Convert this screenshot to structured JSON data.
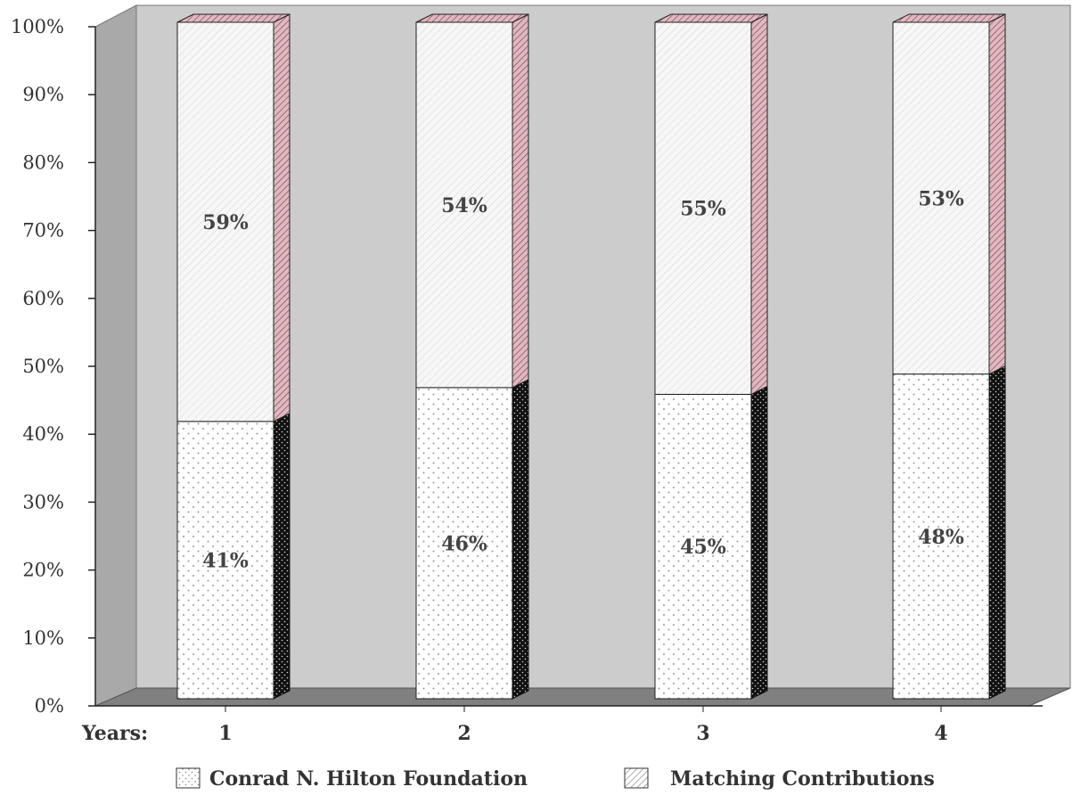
{
  "chart_data": {
    "type": "bar",
    "stacked": true,
    "xlabel": "Years:",
    "categories": [
      "1",
      "2",
      "3",
      "4"
    ],
    "series": [
      {
        "name": "Conrad N. Hilton Foundation",
        "values": [
          41,
          46,
          45,
          48
        ],
        "labels": [
          "41%",
          "46%",
          "45%",
          "48%"
        ]
      },
      {
        "name": "Matching Contributions",
        "values": [
          59,
          54,
          55,
          53
        ],
        "labels": [
          "59%",
          "54%",
          "55%",
          "53%"
        ]
      }
    ],
    "y_ticks": [
      "0%",
      "10%",
      "20%",
      "30%",
      "40%",
      "50%",
      "60%",
      "70%",
      "80%",
      "90%",
      "100%"
    ],
    "ylim": [
      0,
      100
    ],
    "legend_position": "bottom",
    "colors": {
      "wall": "#cccccc",
      "floor": "#808080",
      "bar_face": "#ffffff",
      "hilton_side": "#111111",
      "matching_side": "#e2b7c0"
    }
  }
}
